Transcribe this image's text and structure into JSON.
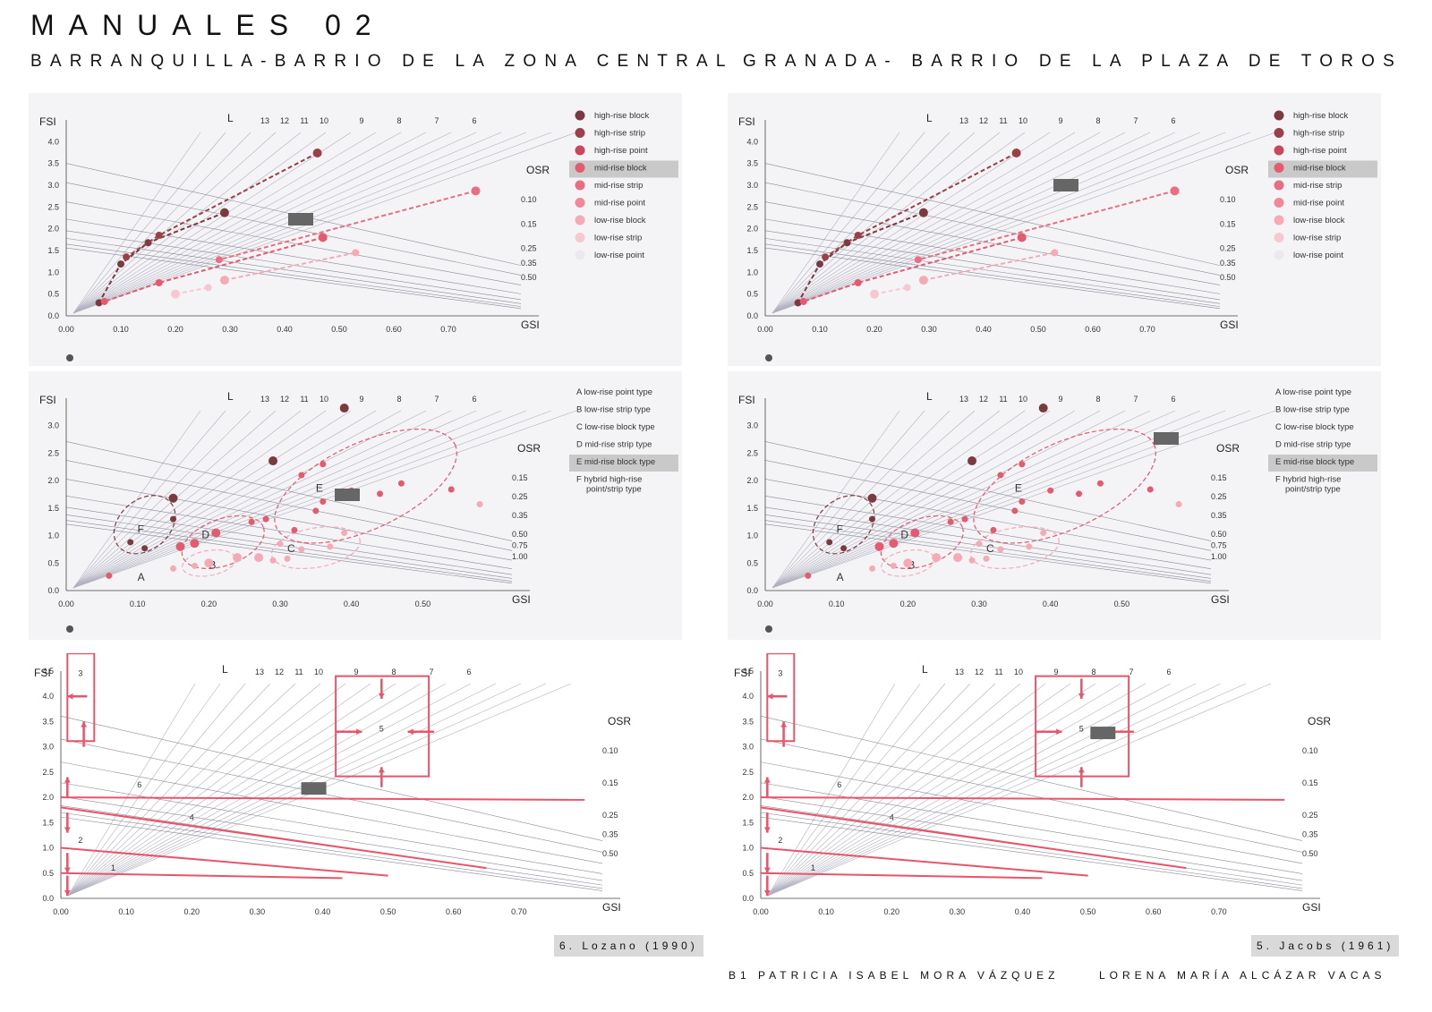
{
  "page": {
    "title": "MANUALES 02",
    "left_subtitle": "BARRANQUILLA-BARRIO DE LA ZONA CENTRAL",
    "right_subtitle": "GRANADA- BARRIO DE LA PLAZA DE TOROS",
    "left_reference": "6. Lozano (1990)",
    "right_reference": "5. Jacobs (1961)",
    "author_1": "B1 PATRICIA ISABEL MORA VÁZQUEZ",
    "author_2": "LORENA MARÍA ALCÁZAR VACAS"
  },
  "colors": {
    "hr_block": "#7a3a3f",
    "hr_strip": "#9a4048",
    "hr_point": "#c8485a",
    "mr_block": "#e45a6e",
    "mr_strip": "#ea6d80",
    "mr_point": "#f08898",
    "lr_block": "#f5aab6",
    "lr_strip": "#f8c8d0",
    "lr_point": "#ece8f0",
    "accent": "#e8546a",
    "marker": "#666666",
    "highlight": "#c9c9c9"
  },
  "chart_data": [
    {
      "type": "scatter",
      "id": "spacemate-types",
      "xlabel": "GSI",
      "ylabel": "FSI",
      "osr_label": "OSR",
      "l_label": "L",
      "xlim": [
        0,
        0.8
      ],
      "ylim": [
        0,
        4.5
      ],
      "x_ticks": [
        "0.00",
        "0.10",
        "0.20",
        "0.30",
        "0.40",
        "0.50",
        "0.60",
        "0.70"
      ],
      "y_ticks": [
        "0.0",
        "0.5",
        "1.0",
        "1.5",
        "2.0",
        "2.5",
        "3.0",
        "3.5",
        "4.0"
      ],
      "l_ticks": [
        "13",
        "12",
        "11",
        "10",
        "9",
        "8",
        "7",
        "6"
      ],
      "osr_ticks": [
        "0.10",
        "0.15",
        "0.25",
        "0.35",
        "0.50"
      ],
      "legend": [
        "high-rise block",
        "high-rise strip",
        "high-rise point",
        "mid-rise block",
        "mid-rise strip",
        "mid-rise point",
        "low-rise block",
        "low-rise strip",
        "low-rise point"
      ],
      "highlight_index": 3,
      "series": [
        {
          "name": "high-rise block",
          "color": "hr_block",
          "points": [
            [
              0.29,
              2.37
            ],
            [
              0.15,
              1.68
            ],
            [
              0.1,
              1.19
            ],
            [
              0.06,
              0.3
            ]
          ]
        },
        {
          "name": "high-rise strip",
          "color": "hr_strip",
          "points": [
            [
              0.46,
              3.74
            ],
            [
              0.17,
              1.85
            ],
            [
              0.11,
              1.35
            ]
          ]
        },
        {
          "name": "mid-rise block",
          "color": "mr_block",
          "points": [
            [
              0.47,
              1.8
            ],
            [
              0.17,
              0.76
            ],
            [
              0.07,
              0.33
            ]
          ]
        },
        {
          "name": "mid-rise strip",
          "color": "mr_strip",
          "points": [
            [
              0.75,
              2.87
            ],
            [
              0.28,
              1.29
            ]
          ]
        },
        {
          "name": "low-rise block",
          "color": "lr_block",
          "points": [
            [
              0.29,
              0.82
            ],
            [
              0.53,
              1.45
            ]
          ]
        },
        {
          "name": "low-rise strip",
          "color": "lr_strip",
          "points": [
            [
              0.2,
              0.5
            ],
            [
              0.26,
              0.65
            ]
          ]
        }
      ]
    },
    {
      "type": "scatter",
      "id": "spacemate-clusters",
      "xlabel": "GSI",
      "ylabel": "FSI",
      "osr_label": "OSR",
      "l_label": "L",
      "xlim": [
        0,
        0.6
      ],
      "ylim": [
        0,
        3.5
      ],
      "x_ticks": [
        "0.00",
        "0.10",
        "0.20",
        "0.30",
        "0.40",
        "0.50"
      ],
      "y_ticks": [
        "0.0",
        "0.5",
        "1.0",
        "1.5",
        "2.0",
        "2.5",
        "3.0"
      ],
      "l_ticks": [
        "13",
        "12",
        "11",
        "10",
        "9",
        "8",
        "7",
        "6"
      ],
      "osr_ticks": [
        "0.15",
        "0.25",
        "0.35",
        "0.50",
        "0.75",
        "1.00"
      ],
      "legend": [
        "A  low-rise point type",
        "B  low-rise strip type",
        "C  low-rise block type",
        "D  mid-rise strip type",
        "E  mid-rise block type",
        "F  hybrid high-rise point/strip type"
      ],
      "highlight_index": 4,
      "clusters": [
        "A",
        "B",
        "C",
        "D",
        "E",
        "F"
      ],
      "series": [
        {
          "name": "hr",
          "color": "hr_block",
          "points": [
            [
              0.15,
              1.68
            ],
            [
              0.29,
              2.36
            ],
            [
              0.39,
              3.32
            ],
            [
              0.15,
              1.3
            ],
            [
              0.09,
              0.88
            ],
            [
              0.11,
              0.77
            ]
          ]
        },
        {
          "name": "mr",
          "color": "mr_block",
          "points": [
            [
              0.16,
              0.8
            ],
            [
              0.18,
              0.86
            ],
            [
              0.21,
              1.05
            ],
            [
              0.26,
              1.25
            ],
            [
              0.28,
              1.3
            ],
            [
              0.35,
              1.45
            ],
            [
              0.36,
              1.62
            ],
            [
              0.4,
              1.82
            ],
            [
              0.44,
              1.76
            ],
            [
              0.47,
              1.95
            ],
            [
              0.54,
              1.84
            ],
            [
              0.32,
              1.1
            ],
            [
              0.36,
              2.3
            ],
            [
              0.33,
              2.1
            ],
            [
              0.06,
              0.27
            ]
          ]
        },
        {
          "name": "lr",
          "color": "lr_block",
          "points": [
            [
              0.2,
              0.5
            ],
            [
              0.24,
              0.6
            ],
            [
              0.27,
              0.6
            ],
            [
              0.3,
              0.85
            ],
            [
              0.33,
              0.75
            ],
            [
              0.37,
              0.8
            ],
            [
              0.39,
              1.05
            ],
            [
              0.29,
              0.55
            ],
            [
              0.31,
              0.58
            ],
            [
              0.58,
              1.57
            ],
            [
              0.15,
              0.4
            ],
            [
              0.18,
              0.45
            ]
          ]
        }
      ]
    },
    {
      "type": "line",
      "id": "spacemate-manual",
      "xlabel": "GSI",
      "ylabel": "FSI",
      "osr_label": "OSR",
      "l_label": "L",
      "xlim": [
        0,
        0.8
      ],
      "ylim": [
        0,
        4.5
      ],
      "x_ticks": [
        "0.00",
        "0.10",
        "0.20",
        "0.30",
        "0.40",
        "0.50",
        "0.60",
        "0.70"
      ],
      "y_ticks": [
        "0.0",
        "0.5",
        "1.0",
        "1.5",
        "2.0",
        "2.5",
        "3.0",
        "3.5",
        "4.0",
        "4.5"
      ],
      "l_ticks": [
        "13",
        "12",
        "11",
        "10",
        "9",
        "8",
        "7",
        "6"
      ],
      "osr_ticks": [
        "0.10",
        "0.15",
        "0.25",
        "0.35",
        "0.50"
      ],
      "zones": [
        "1",
        "2",
        "3",
        "4",
        "5",
        "6"
      ]
    }
  ]
}
